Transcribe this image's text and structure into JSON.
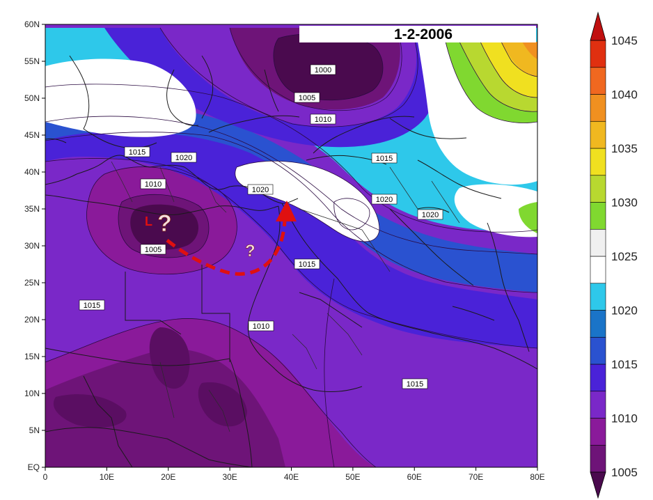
{
  "title": "1-2-2006",
  "x_axis": {
    "ticks": [
      "0",
      "10E",
      "20E",
      "30E",
      "40E",
      "50E",
      "60E",
      "70E",
      "80E"
    ]
  },
  "y_axis": {
    "ticks": [
      "EQ",
      "5N",
      "10N",
      "15N",
      "20N",
      "25N",
      "30N",
      "35N",
      "40N",
      "45N",
      "50N",
      "55N",
      "60N"
    ]
  },
  "colorbar": {
    "labels": [
      "1005",
      "1010",
      "1015",
      "1020",
      "1025",
      "1030",
      "1035",
      "1040",
      "1045"
    ],
    "colors": [
      "#4a0a4e",
      "#6e1478",
      "#8a1a9a",
      "#7a28c8",
      "#4a22d8",
      "#2a52d0",
      "#1a74c8",
      "#2ec8ea",
      "#ffffff",
      "#f0f0f0",
      "#80d830",
      "#b8d830",
      "#f0e020",
      "#f0b820",
      "#f09020",
      "#f06820",
      "#e03010",
      "#c01010"
    ]
  },
  "contour_labels": [
    "1000",
    "1005",
    "1010",
    "1015",
    "1020",
    "1020",
    "1010",
    "1015",
    "1020",
    "1015",
    "1005",
    "1015",
    "1010",
    "1020",
    "1015"
  ],
  "annotations": {
    "low_marker": "L",
    "question_1": "?",
    "question_2": "?"
  }
}
